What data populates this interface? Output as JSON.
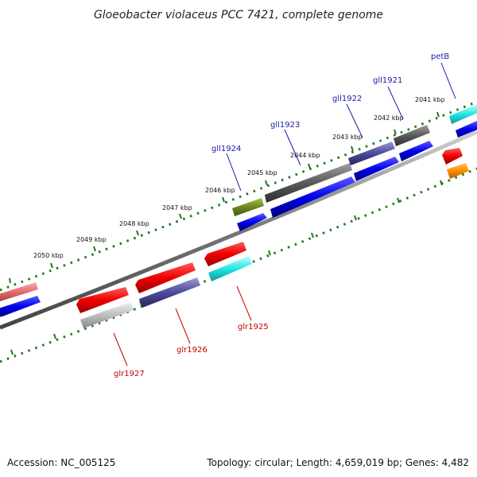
{
  "title": "Gloeobacter violaceus PCC 7421, complete genome",
  "footer": {
    "accession": "Accession: NC_005125",
    "summary": "Topology: circular; Length: 4,659,019 bp; Genes: 4,482"
  },
  "scale_labels": [
    "2041 kbp",
    "2042 kbp",
    "2043 kbp",
    "2044 kbp",
    "2045 kbp",
    "2046 kbp",
    "2047 kbp",
    "2048 kbp",
    "2049 kbp",
    "2050 kbp"
  ],
  "gene_labels": {
    "forward": [
      "petB",
      "gll1921",
      "gll1922",
      "gll1923",
      "gll1924"
    ],
    "reverse": [
      "glr1925",
      "glr1926",
      "glr1927"
    ]
  },
  "colors": {
    "forward_label": "#1a1aa8",
    "reverse_label": "#c40000",
    "scale_dots": "#1f7a1f",
    "backbone": "#777777"
  }
}
